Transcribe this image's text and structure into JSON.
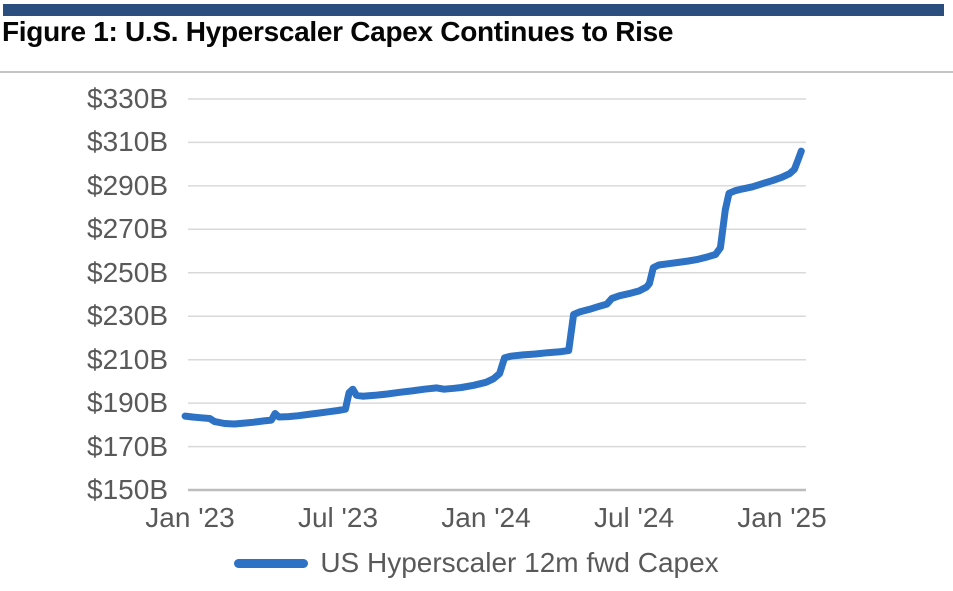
{
  "header": {
    "title": "Figure 1: U.S. Hyperscaler Capex Continues to Rise",
    "accent_bar_color": "#2a4e7e"
  },
  "chart_data": {
    "type": "line",
    "title": "Figure 1: U.S. Hyperscaler Capex Continues to Rise",
    "xlabel": "",
    "ylabel": "",
    "unit": "USD billions",
    "grid": "horizontal",
    "legend_position": "bottom",
    "ylim": [
      150,
      330
    ],
    "yticks": [
      "$330B",
      "$310B",
      "$290B",
      "$270B",
      "$250B",
      "$230B",
      "$210B",
      "$190B",
      "$170B",
      "$150B"
    ],
    "ytick_values": [
      330,
      310,
      290,
      270,
      250,
      230,
      210,
      190,
      170,
      150
    ],
    "xticks": [
      "Jan '23",
      "Jul '23",
      "Jan '24",
      "Jul '24",
      "Jan '25"
    ],
    "xtick_months": [
      0,
      6,
      12,
      18,
      24
    ],
    "line_color": "#2d72c4",
    "grid_color": "#d9d9d9",
    "axis_line_color": "#bdbdbd",
    "tick_label_color": "#595959",
    "series": [
      {
        "name": "US Hyperscaler 12m fwd Capex",
        "x_unit": "months_since_jan_2023",
        "points": [
          [
            -0.2,
            184.0
          ],
          [
            0.1,
            183.6
          ],
          [
            0.4,
            183.3
          ],
          [
            0.8,
            182.9
          ],
          [
            1.0,
            181.5
          ],
          [
            1.4,
            180.6
          ],
          [
            1.8,
            180.4
          ],
          [
            2.2,
            180.8
          ],
          [
            2.6,
            181.2
          ],
          [
            3.0,
            181.8
          ],
          [
            3.3,
            182.2
          ],
          [
            3.45,
            185.2
          ],
          [
            3.6,
            183.6
          ],
          [
            4.0,
            183.8
          ],
          [
            4.4,
            184.2
          ],
          [
            4.8,
            184.8
          ],
          [
            5.2,
            185.4
          ],
          [
            5.6,
            186.0
          ],
          [
            6.0,
            186.6
          ],
          [
            6.3,
            187.2
          ],
          [
            6.45,
            194.8
          ],
          [
            6.6,
            196.4
          ],
          [
            6.75,
            193.6
          ],
          [
            7.0,
            193.2
          ],
          [
            7.5,
            193.6
          ],
          [
            8.0,
            194.2
          ],
          [
            8.5,
            195.0
          ],
          [
            9.0,
            195.6
          ],
          [
            9.5,
            196.4
          ],
          [
            10.0,
            197.0
          ],
          [
            10.3,
            196.4
          ],
          [
            10.7,
            196.8
          ],
          [
            11.0,
            197.2
          ],
          [
            11.5,
            198.2
          ],
          [
            12.0,
            199.6
          ],
          [
            12.3,
            201.2
          ],
          [
            12.55,
            203.6
          ],
          [
            12.75,
            210.8
          ],
          [
            13.0,
            211.6
          ],
          [
            13.5,
            212.2
          ],
          [
            14.0,
            212.6
          ],
          [
            14.5,
            213.2
          ],
          [
            15.0,
            213.6
          ],
          [
            15.35,
            214.2
          ],
          [
            15.55,
            230.8
          ],
          [
            15.8,
            232.0
          ],
          [
            16.2,
            233.2
          ],
          [
            16.6,
            234.6
          ],
          [
            16.9,
            235.6
          ],
          [
            17.1,
            238.2
          ],
          [
            17.4,
            239.4
          ],
          [
            17.8,
            240.4
          ],
          [
            18.2,
            241.6
          ],
          [
            18.5,
            243.4
          ],
          [
            18.62,
            245.0
          ],
          [
            18.78,
            252.4
          ],
          [
            19.0,
            253.6
          ],
          [
            19.4,
            254.2
          ],
          [
            19.8,
            254.8
          ],
          [
            20.2,
            255.4
          ],
          [
            20.6,
            256.2
          ],
          [
            21.0,
            257.4
          ],
          [
            21.3,
            258.4
          ],
          [
            21.5,
            261.5
          ],
          [
            21.7,
            279.0
          ],
          [
            21.85,
            286.6
          ],
          [
            22.1,
            287.8
          ],
          [
            22.4,
            288.6
          ],
          [
            22.8,
            289.6
          ],
          [
            23.2,
            291.0
          ],
          [
            23.6,
            292.4
          ],
          [
            24.0,
            294.0
          ],
          [
            24.3,
            295.6
          ],
          [
            24.5,
            297.6
          ],
          [
            24.65,
            302.0
          ],
          [
            24.78,
            306.0
          ]
        ]
      }
    ]
  },
  "legend": {
    "label": "US Hyperscaler 12m fwd Capex"
  }
}
